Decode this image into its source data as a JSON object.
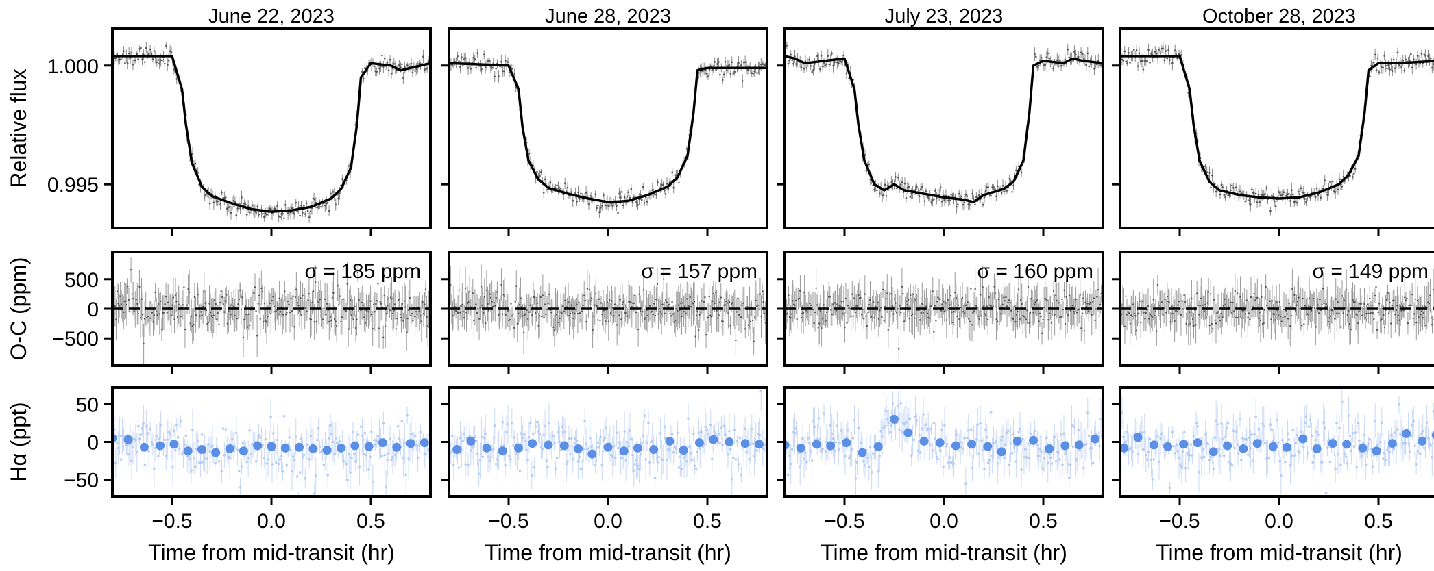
{
  "chart_data": {
    "type": "line",
    "layout": "3 rows x 4 columns of panels, shared axes per row",
    "columns": [
      {
        "title": "June 22, 2023",
        "sigma_label": "σ = 185 ppm"
      },
      {
        "title": "June 28, 2023",
        "sigma_label": "σ = 157 ppm"
      },
      {
        "title": "July 23, 2023",
        "sigma_label": "σ = 160 ppm"
      },
      {
        "title": "October 28, 2023",
        "sigma_label": "σ = 149 ppm"
      }
    ],
    "xlabel": "Time from mid-transit (hr)",
    "xlim": [
      -0.8,
      0.8
    ],
    "xticks": [
      -0.5,
      0.0,
      0.5
    ],
    "xtick_labels": [
      "−0.5",
      "0.0",
      "0.5"
    ],
    "rows": [
      {
        "name": "flux",
        "ylabel": "Relative flux",
        "ylim": [
          0.99316,
          1.00155
        ],
        "yticks": [
          0.995,
          1.0
        ],
        "ytick_labels": [
          "0.995",
          "1.000"
        ],
        "series_color": "#000000",
        "data_color": "#888888",
        "model_curves": [
          {
            "x": [
              -0.8,
              -0.5,
              -0.45,
              -0.43,
              -0.4,
              -0.35,
              -0.3,
              -0.2,
              -0.1,
              0,
              0.1,
              0.2,
              0.3,
              0.35,
              0.4,
              0.43,
              0.45,
              0.5,
              0.6,
              0.65,
              0.8
            ],
            "y": [
              1.0004,
              1.0004,
              0.999,
              0.9975,
              0.9959,
              0.9949,
              0.9945,
              0.9942,
              0.99395,
              0.99385,
              0.9939,
              0.99405,
              0.9944,
              0.9948,
              0.9957,
              0.9975,
              0.9995,
              1.0001,
              1.0,
              0.9998,
              1.0001
            ]
          },
          {
            "x": [
              -0.8,
              -0.5,
              -0.45,
              -0.43,
              -0.4,
              -0.35,
              -0.3,
              -0.2,
              -0.1,
              0,
              0.1,
              0.2,
              0.3,
              0.35,
              0.4,
              0.43,
              0.45,
              0.5,
              0.6,
              0.8
            ],
            "y": [
              1.0001,
              1.0,
              0.999,
              0.9974,
              0.996,
              0.9952,
              0.99485,
              0.9946,
              0.9944,
              0.99425,
              0.9943,
              0.99455,
              0.9949,
              0.9953,
              0.9962,
              0.998,
              0.9998,
              0.9999,
              0.9999,
              0.9999
            ]
          },
          {
            "x": [
              -0.8,
              -0.75,
              -0.7,
              -0.6,
              -0.5,
              -0.45,
              -0.43,
              -0.4,
              -0.35,
              -0.3,
              -0.25,
              -0.2,
              -0.1,
              0,
              0.1,
              0.15,
              0.2,
              0.3,
              0.35,
              0.4,
              0.43,
              0.45,
              0.5,
              0.6,
              0.65,
              0.7,
              0.8
            ],
            "y": [
              1.0004,
              1.0003,
              1.0001,
              1.0002,
              1.0003,
              0.999,
              0.9975,
              0.996,
              0.995,
              0.99475,
              0.995,
              0.99475,
              0.9946,
              0.99445,
              0.99435,
              0.99425,
              0.99455,
              0.9948,
              0.9951,
              0.996,
              0.998,
              1.0,
              1.0002,
              1.0001,
              1.0003,
              1.0002,
              1.0001
            ]
          },
          {
            "x": [
              -0.8,
              -0.5,
              -0.45,
              -0.43,
              -0.4,
              -0.35,
              -0.3,
              -0.2,
              -0.1,
              0,
              0.1,
              0.2,
              0.3,
              0.35,
              0.4,
              0.43,
              0.45,
              0.5,
              0.6,
              0.8
            ],
            "y": [
              1.0004,
              1.0004,
              0.999,
              0.9975,
              0.996,
              0.9951,
              0.99475,
              0.99455,
              0.99445,
              0.9944,
              0.99445,
              0.99465,
              0.995,
              0.9954,
              0.9962,
              0.998,
              0.9998,
              1.0001,
              1.0001,
              1.0002
            ]
          }
        ],
        "scatter_seeds": [
          11,
          23,
          37,
          51
        ],
        "noise_sd": 0.00019
      },
      {
        "name": "residuals",
        "ylabel": "O-C (ppm)",
        "ylim": [
          -960,
          960
        ],
        "yticks": [
          -500,
          0,
          500
        ],
        "ytick_labels": [
          "−500",
          "0",
          "500"
        ],
        "zero_line": "dashed",
        "noise_sd": [
          185,
          157,
          160,
          149
        ]
      },
      {
        "name": "halpha",
        "ylabel": "Hα (ppt)",
        "ylim": [
          -72,
          72
        ],
        "yticks": [
          -50,
          0,
          50
        ],
        "ytick_labels": [
          "−50",
          "0",
          "50"
        ],
        "series_color": "#5b8fe6",
        "binned": [
          {
            "x": [
              -0.8,
              -0.72,
              -0.64,
              -0.56,
              -0.49,
              -0.42,
              -0.35,
              -0.28,
              -0.21,
              -0.14,
              -0.07,
              0.0,
              0.07,
              0.14,
              0.21,
              0.28,
              0.35,
              0.42,
              0.49,
              0.56,
              0.63,
              0.7,
              0.77
            ],
            "y": [
              5,
              3,
              -7,
              -5,
              -3,
              -12,
              -10,
              -14,
              -9,
              -12,
              -5,
              -6,
              -8,
              -7,
              -9,
              -11,
              -8,
              -5,
              -6,
              -1,
              -7,
              -2,
              -1
            ]
          },
          {
            "x": [
              -0.76,
              -0.69,
              -0.61,
              -0.53,
              -0.45,
              -0.38,
              -0.3,
              -0.22,
              -0.15,
              -0.08,
              0.0,
              0.08,
              0.15,
              0.23,
              0.31,
              0.38,
              0.46,
              0.53,
              0.61,
              0.69,
              0.76
            ],
            "y": [
              -10,
              1,
              -8,
              -12,
              -8,
              -2,
              -4,
              -5,
              -9,
              -16,
              -7,
              -12,
              -8,
              -10,
              1,
              -11,
              -1,
              3,
              0,
              -2,
              -3
            ]
          },
          {
            "x": [
              -0.8,
              -0.72,
              -0.64,
              -0.57,
              -0.49,
              -0.41,
              -0.33,
              -0.25,
              -0.18,
              -0.1,
              -0.02,
              0.06,
              0.14,
              0.22,
              0.29,
              0.37,
              0.45,
              0.53,
              0.61,
              0.68,
              0.76
            ],
            "y": [
              -4,
              -8,
              -3,
              -5,
              -1,
              -14,
              -6,
              30,
              12,
              1,
              -1,
              -5,
              -3,
              -6,
              -13,
              1,
              2,
              -9,
              -5,
              -4,
              4
            ]
          },
          {
            "x": [
              -0.78,
              -0.71,
              -0.63,
              -0.56,
              -0.48,
              -0.41,
              -0.33,
              -0.26,
              -0.18,
              -0.11,
              -0.03,
              0.04,
              0.12,
              0.19,
              0.27,
              0.34,
              0.42,
              0.49,
              0.57,
              0.64,
              0.72,
              0.79
            ],
            "y": [
              -8,
              6,
              -4,
              -6,
              -3,
              -1,
              -13,
              -5,
              -9,
              -2,
              -6,
              -7,
              4,
              -9,
              -2,
              -3,
              -8,
              -12,
              -2,
              11,
              1,
              9
            ]
          }
        ],
        "noise_sd": 18
      }
    ]
  }
}
